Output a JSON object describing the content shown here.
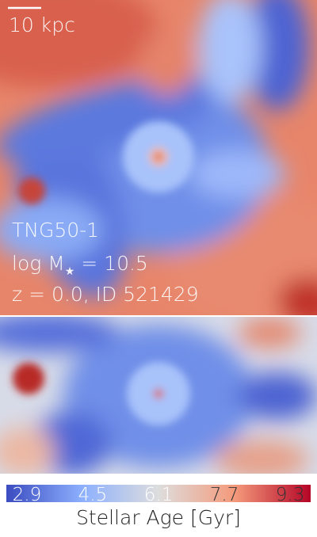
{
  "scale_bar": {
    "label": "10 kpc"
  },
  "labels": {
    "simulation": "TNG50-1",
    "mass": {
      "prefix": "log M",
      "subscript": "★",
      "suffix": " = 10.5"
    },
    "snapshot": "z = 0.0, ID 521429"
  },
  "colorbar": {
    "label": "Stellar Age [Gyr]",
    "clim": [
      2.4,
      9.8
    ],
    "ticks": [
      2.9,
      4.5,
      6.1,
      7.7,
      9.3
    ],
    "colors": [
      "#3b4cc0",
      "#8db0fe",
      "#dddddd",
      "#f49a7b",
      "#b40426"
    ]
  }
}
